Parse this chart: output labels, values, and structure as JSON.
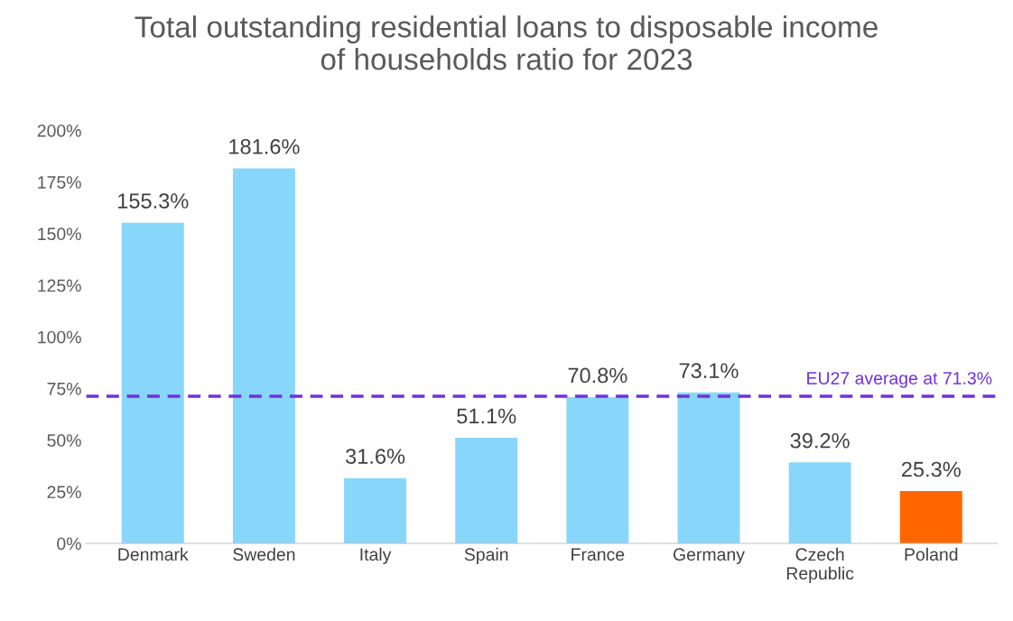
{
  "chart_data": {
    "type": "bar",
    "title": "Total outstanding residential loans to disposable income\nof households ratio for 2023",
    "categories": [
      "Denmark",
      "Sweden",
      "Italy",
      "Spain",
      "France",
      "Germany",
      "Czech\nRepublic",
      "Poland"
    ],
    "values": [
      155.3,
      181.6,
      31.6,
      51.1,
      70.8,
      73.1,
      39.2,
      25.3
    ],
    "colors": [
      "#89d6fb",
      "#89d6fb",
      "#89d6fb",
      "#89d6fb",
      "#89d6fb",
      "#89d6fb",
      "#89d6fb",
      "#ff6600"
    ],
    "value_labels": [
      "155.3%",
      "181.6%",
      "31.6%",
      "51.1%",
      "70.8%",
      "73.1%",
      "39.2%",
      "25.3%"
    ],
    "ylim": [
      0,
      200
    ],
    "yticks": [
      {
        "value": 0,
        "label": "0%"
      },
      {
        "value": 25,
        "label": "25%"
      },
      {
        "value": 50,
        "label": "50%"
      },
      {
        "value": 75,
        "label": "75%"
      },
      {
        "value": 100,
        "label": "100%"
      },
      {
        "value": 125,
        "label": "125%"
      },
      {
        "value": 150,
        "label": "150%"
      },
      {
        "value": 175,
        "label": "175%"
      },
      {
        "value": 200,
        "label": "200%"
      }
    ],
    "ref_lines": [
      {
        "axis": "y",
        "value": 71.3,
        "label": "EU27 average at 71.3%",
        "color": "#7030e0",
        "line_style": "dashed"
      }
    ],
    "grid": false,
    "legend": false
  }
}
